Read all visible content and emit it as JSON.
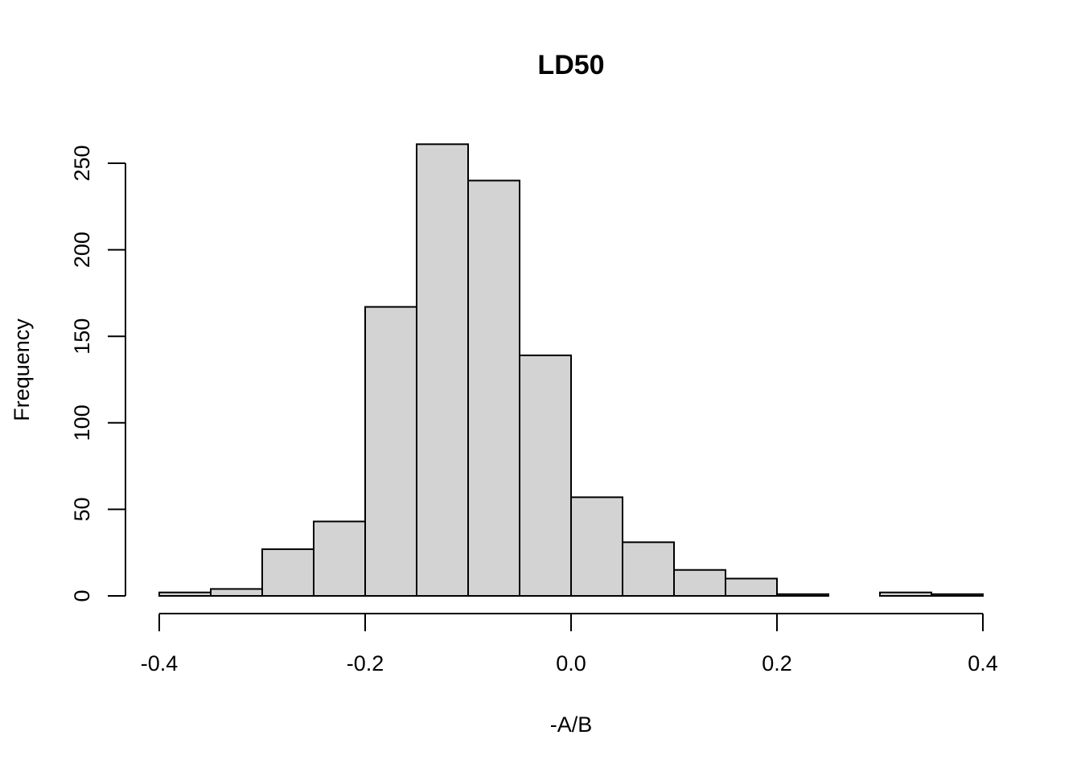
{
  "chart_data": {
    "type": "bar",
    "title": "LD50",
    "xlabel": "-A/B",
    "ylabel": "Frequency",
    "bin_edges": [
      -0.4,
      -0.35,
      -0.3,
      -0.25,
      -0.2,
      -0.15,
      -0.1,
      -0.05,
      0.0,
      0.05,
      0.1,
      0.15,
      0.2,
      0.25,
      0.3,
      0.35,
      0.4
    ],
    "values": [
      2,
      4,
      27,
      43,
      167,
      261,
      240,
      139,
      57,
      31,
      15,
      10,
      1,
      0,
      2,
      1
    ],
    "xlim": [
      -0.4,
      0.4
    ],
    "ylim": [
      0,
      261
    ],
    "x_ticks": [
      -0.4,
      -0.2,
      0.0,
      0.2,
      0.4
    ],
    "x_tick_labels": [
      "-0.4",
      "-0.2",
      "0.0",
      "0.2",
      "0.4"
    ],
    "y_ticks": [
      0,
      50,
      100,
      150,
      200,
      250
    ],
    "y_tick_labels": [
      "0",
      "50",
      "100",
      "150",
      "200",
      "250"
    ],
    "bar_color": "#d3d3d3",
    "grid": false,
    "legend": "none"
  }
}
